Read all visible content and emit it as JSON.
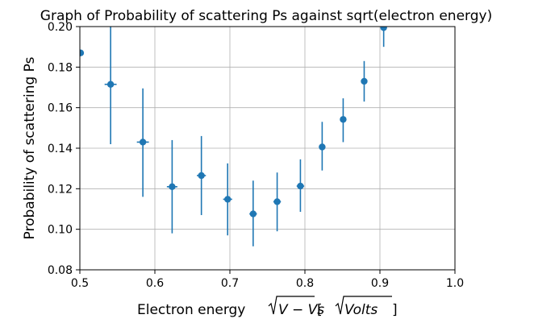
{
  "chart_data": {
    "type": "scatter",
    "title": "Graph of Probability of scattering Ps against sqrt(electron energy)",
    "xlabel": "Electron energy √V − Vs [√Volts]",
    "xlabel_parts": {
      "prefix": "Electron energy ",
      "radicand1": "V − Vs",
      "bracket_open": " [",
      "radicand2": "Volts",
      "bracket_close": "]"
    },
    "ylabel": "Probability of scattering Ps",
    "xlim": [
      0.5,
      1.0
    ],
    "ylim": [
      0.08,
      0.2
    ],
    "xticks": [
      0.5,
      0.6,
      0.7,
      0.8,
      0.9,
      1.0
    ],
    "xtick_labels": [
      "0.5",
      "0.6",
      "0.7",
      "0.8",
      "0.9",
      "1.0"
    ],
    "yticks": [
      0.08,
      0.1,
      0.12,
      0.14,
      0.16,
      0.18,
      0.2
    ],
    "ytick_labels": [
      "0.08",
      "0.10",
      "0.12",
      "0.14",
      "0.16",
      "0.18",
      "0.20"
    ],
    "grid": true,
    "color": "#1f77b4",
    "points": [
      {
        "x": 0.501,
        "y": 0.187,
        "xerr": 0.004,
        "yerr_low": 0.0,
        "yerr_high": 0.0
      },
      {
        "x": 0.541,
        "y": 0.1715,
        "xerr": 0.008,
        "yerr_low": 0.0295,
        "yerr_high": 0.0285
      },
      {
        "x": 0.584,
        "y": 0.143,
        "xerr": 0.008,
        "yerr_low": 0.027,
        "yerr_high": 0.0265
      },
      {
        "x": 0.623,
        "y": 0.121,
        "xerr": 0.007,
        "yerr_low": 0.023,
        "yerr_high": 0.023
      },
      {
        "x": 0.662,
        "y": 0.1265,
        "xerr": 0.006,
        "yerr_low": 0.0195,
        "yerr_high": 0.0195
      },
      {
        "x": 0.697,
        "y": 0.1148,
        "xerr": 0.006,
        "yerr_low": 0.0178,
        "yerr_high": 0.0177
      },
      {
        "x": 0.731,
        "y": 0.1076,
        "xerr": 0.005,
        "yerr_low": 0.016,
        "yerr_high": 0.0164
      },
      {
        "x": 0.763,
        "y": 0.1136,
        "xerr": 0.005,
        "yerr_low": 0.0146,
        "yerr_high": 0.0144
      },
      {
        "x": 0.794,
        "y": 0.1213,
        "xerr": 0.005,
        "yerr_low": 0.0127,
        "yerr_high": 0.0132
      },
      {
        "x": 0.823,
        "y": 0.1406,
        "xerr": 0.004,
        "yerr_low": 0.0116,
        "yerr_high": 0.0124
      },
      {
        "x": 0.851,
        "y": 0.1542,
        "xerr": 0.004,
        "yerr_low": 0.0112,
        "yerr_high": 0.0104
      },
      {
        "x": 0.879,
        "y": 0.173,
        "xerr": 0.004,
        "yerr_low": 0.01,
        "yerr_high": 0.01
      },
      {
        "x": 0.905,
        "y": 0.1995,
        "xerr": 0.004,
        "yerr_low": 0.0095,
        "yerr_high": 0.0005
      }
    ]
  }
}
